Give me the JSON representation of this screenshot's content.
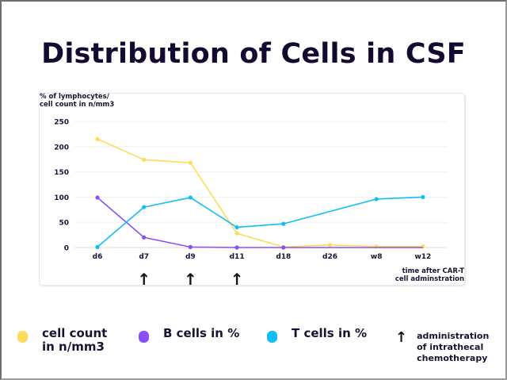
{
  "title": "Distribution of Cells in CSF",
  "chart_data": {
    "type": "line",
    "title": "Distribution of Cells in CSF",
    "ylabel": "% of lymphocytes/\ncell count  in n/mm3",
    "xlabel": "time after CAR-T\ncell adminstration",
    "categories": [
      "d6",
      "d7",
      "d9",
      "d11",
      "d18",
      "d26",
      "w8",
      "w12"
    ],
    "ylim": [
      0,
      250
    ],
    "yticks": [
      0,
      50,
      100,
      150,
      200,
      250
    ],
    "grid": true,
    "series": [
      {
        "name": "cell count in n/mm3",
        "color": "#fedc5a",
        "values": [
          215,
          174,
          168,
          28,
          1,
          5,
          2,
          2
        ]
      },
      {
        "name": "B cells in %",
        "color": "#8b4ff7",
        "values": [
          99,
          20,
          1,
          0,
          0,
          null,
          null,
          null
        ]
      },
      {
        "name": "T cells in %",
        "color": "#14bdf5",
        "values": [
          1,
          80,
          99,
          40,
          47,
          null,
          96,
          100
        ]
      }
    ],
    "b_cell_tail": "B cells line continues flat at 0 through w12",
    "annotations": {
      "arrows_at": [
        "d7",
        "d9",
        "d11"
      ],
      "arrow_meaning": "administration of intrathecal chemotherapy"
    },
    "legend_placement": "bottom"
  },
  "ylabel_lines": [
    "% of lymphocytes/",
    "cell count  in n/mm3"
  ],
  "xlabel_lines": [
    "time after CAR-T",
    "cell adminstration"
  ],
  "legend": [
    {
      "label_lines": [
        "cell count",
        "in n/mm3"
      ],
      "color": "#fedc5a"
    },
    {
      "label_lines": [
        "B cells in %"
      ],
      "color": "#8b4ff7"
    },
    {
      "label_lines": [
        "T cells in %"
      ],
      "color": "#14bdf5"
    },
    {
      "label_lines": [
        "administration",
        "of intrathecal",
        "chemotherapy"
      ],
      "symbol": "↑"
    }
  ]
}
